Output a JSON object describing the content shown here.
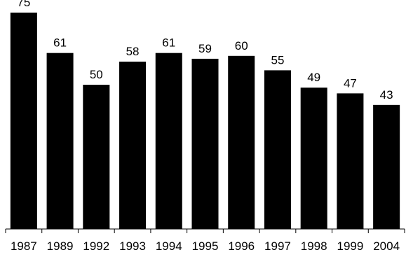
{
  "chart_data": {
    "type": "bar",
    "categories": [
      "1987",
      "1989",
      "1992",
      "1993",
      "1994",
      "1995",
      "1996",
      "1997",
      "1998",
      "1999",
      "2004"
    ],
    "values": [
      75,
      61,
      50,
      58,
      61,
      59,
      60,
      55,
      49,
      47,
      43
    ],
    "title": "",
    "xlabel": "",
    "ylabel": "",
    "ylim": [
      0,
      75
    ],
    "grid": false,
    "legend": "none",
    "data_labels": true,
    "bar_color": "#000000",
    "background": "#ffffff"
  }
}
